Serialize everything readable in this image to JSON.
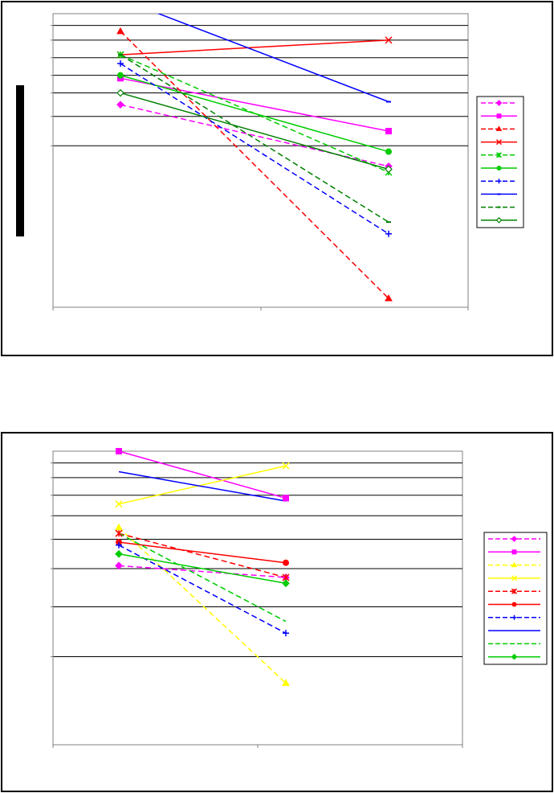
{
  "chart_data": [
    {
      "type": "line",
      "title": "",
      "xlabel": "",
      "ylabel": "",
      "categories": [
        "",
        ""
      ],
      "ylim": [
        0,
        100
      ],
      "gridlines_y": [
        96,
        91,
        85,
        79,
        73,
        65,
        55
      ],
      "grid": true,
      "legend_position": "right",
      "ylabel_bar": true,
      "series": [
        {
          "color": "#FF00FF",
          "dash": true,
          "marker": "diamond",
          "filled": true,
          "values": [
            69,
            48
          ]
        },
        {
          "color": "#FF00FF",
          "dash": false,
          "marker": "square",
          "filled": true,
          "values": [
            78,
            60
          ]
        },
        {
          "color": "#FF0000",
          "dash": true,
          "marker": "triangle",
          "filled": true,
          "values": [
            94,
            3
          ]
        },
        {
          "color": "#FF0000",
          "dash": false,
          "marker": "x",
          "filled": true,
          "values": [
            86,
            91
          ]
        },
        {
          "color": "#00CC00",
          "dash": true,
          "marker": "star",
          "filled": true,
          "values": [
            86,
            46
          ]
        },
        {
          "color": "#00CC00",
          "dash": false,
          "marker": "circle",
          "filled": true,
          "values": [
            79,
            53
          ]
        },
        {
          "color": "#0000FF",
          "dash": true,
          "marker": "plus",
          "filled": true,
          "values": [
            83,
            25
          ]
        },
        {
          "color": "#0000FF",
          "dash": false,
          "marker": "dash",
          "filled": true,
          "values": [
            105,
            70
          ]
        },
        {
          "color": "#008000",
          "dash": true,
          "marker": "dash",
          "filled": true,
          "values": [
            86,
            29
          ]
        },
        {
          "color": "#008000",
          "dash": false,
          "marker": "diamond-open",
          "filled": false,
          "values": [
            73,
            47
          ]
        }
      ]
    },
    {
      "type": "line",
      "title": "",
      "xlabel": "",
      "ylabel": "",
      "categories": [
        "",
        ""
      ],
      "ylim": [
        0,
        100
      ],
      "gridlines_y": [
        96,
        91,
        85,
        78,
        70,
        60,
        47,
        30
      ],
      "grid": true,
      "legend_position": "right",
      "ylabel_bar": false,
      "series": [
        {
          "color": "#FF00FF",
          "dash": true,
          "marker": "diamond",
          "filled": true,
          "values": [
            61,
            57
          ]
        },
        {
          "color": "#FF00FF",
          "dash": false,
          "marker": "square",
          "filled": true,
          "values": [
            100,
            84
          ]
        },
        {
          "color": "#FFFF00",
          "dash": true,
          "marker": "triangle",
          "filled": true,
          "values": [
            74,
            21
          ]
        },
        {
          "color": "#FFFF00",
          "dash": false,
          "marker": "x",
          "filled": true,
          "values": [
            82,
            95
          ]
        },
        {
          "color": "#FF0000",
          "dash": true,
          "marker": "star",
          "filled": true,
          "values": [
            72,
            57
          ]
        },
        {
          "color": "#FF0000",
          "dash": false,
          "marker": "circle",
          "filled": true,
          "values": [
            69,
            62
          ]
        },
        {
          "color": "#0000FF",
          "dash": true,
          "marker": "plus",
          "filled": true,
          "values": [
            68,
            38
          ]
        },
        {
          "color": "#0000FF",
          "dash": false,
          "marker": "none",
          "filled": true,
          "values": [
            93,
            83
          ]
        },
        {
          "color": "#00CC00",
          "dash": true,
          "marker": "none",
          "filled": true,
          "values": [
            72,
            42
          ]
        },
        {
          "color": "#00CC00",
          "dash": false,
          "marker": "diamond",
          "filled": true,
          "values": [
            65,
            55
          ]
        }
      ]
    }
  ]
}
